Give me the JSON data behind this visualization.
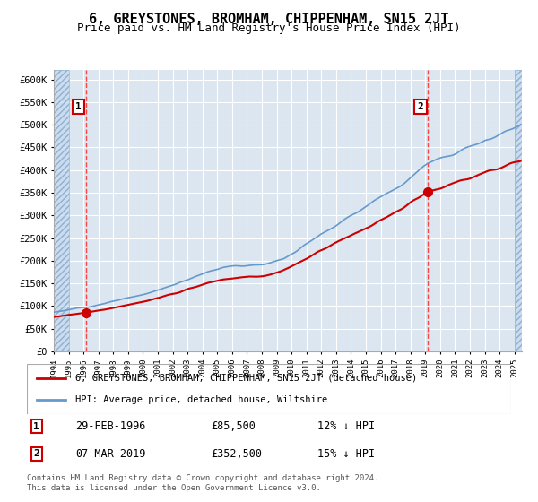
{
  "title": "6, GREYSTONES, BROMHAM, CHIPPENHAM, SN15 2JT",
  "subtitle": "Price paid vs. HM Land Registry's House Price Index (HPI)",
  "title_fontsize": 11,
  "subtitle_fontsize": 9,
  "bg_color": "#dce6f0",
  "plot_bg_color": "#dce6f0",
  "hatch_color": "#b8cce4",
  "red_line_color": "#cc0000",
  "blue_line_color": "#6699cc",
  "grid_color": "#ffffff",
  "vline_color": "#ff4444",
  "marker_color": "#cc0000",
  "ylim": [
    0,
    620000
  ],
  "yticks": [
    0,
    50000,
    100000,
    150000,
    200000,
    250000,
    300000,
    350000,
    400000,
    450000,
    500000,
    550000,
    600000
  ],
  "ytick_labels": [
    "£0",
    "£50K",
    "£100K",
    "£150K",
    "£200K",
    "£250K",
    "£300K",
    "£350K",
    "£400K",
    "£450K",
    "£500K",
    "£550K",
    "£600K"
  ],
  "xlim_start": 1994.0,
  "xlim_end": 2025.5,
  "sale1_year": 1996.17,
  "sale1_price": 85500,
  "sale2_year": 2019.18,
  "sale2_price": 352500,
  "legend_line1": "6, GREYSTONES, BROMHAM, CHIPPENHAM, SN15 2JT (detached house)",
  "legend_line2": "HPI: Average price, detached house, Wiltshire",
  "label1_date": "29-FEB-1996",
  "label1_price": "£85,500",
  "label1_hpi": "12% ↓ HPI",
  "label2_date": "07-MAR-2019",
  "label2_price": "£352,500",
  "label2_hpi": "15% ↓ HPI",
  "footer": "Contains HM Land Registry data © Crown copyright and database right 2024.\nThis data is licensed under the Open Government Licence v3.0."
}
